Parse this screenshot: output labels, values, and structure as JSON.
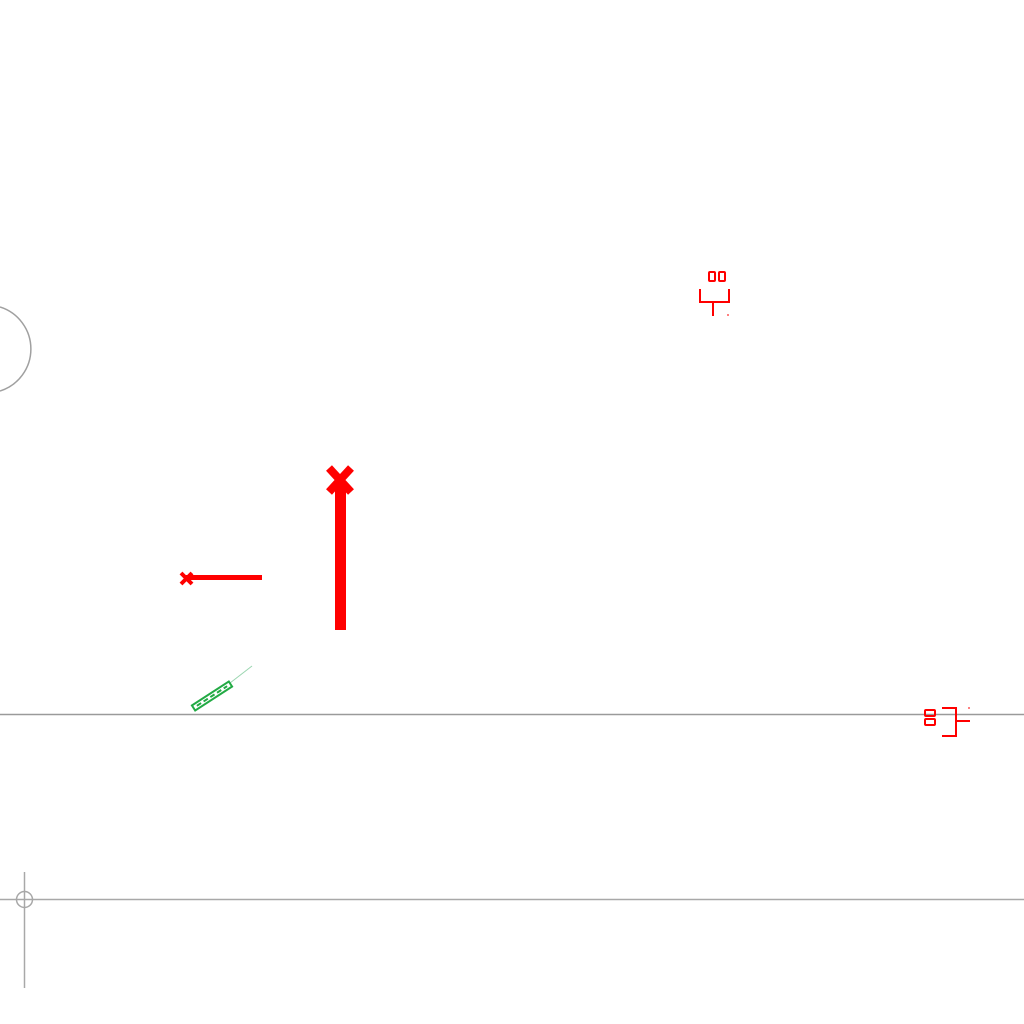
{
  "canvas": {
    "background": "#ffffff"
  },
  "colors": {
    "marker": "#ff0000",
    "highlight": "#22aa44",
    "guide": "#9a9a9a",
    "faint": "#bcbcbc"
  },
  "symbols": [
    {
      "id": "pin-symbol-top",
      "icon": "pin-symbol-icon",
      "color": "#ff0000"
    },
    {
      "id": "pin-symbol-right",
      "icon": "pin-symbol-icon",
      "color": "#ff0000"
    },
    {
      "id": "tall-marker",
      "icon": "x-marker-icon",
      "color": "#ff0000"
    },
    {
      "id": "short-marker",
      "icon": "x-marker-icon",
      "color": "#ff0000"
    },
    {
      "id": "dimension-segment",
      "icon": "dashed-segment-icon",
      "color": "#22aa44"
    }
  ],
  "crosshair": {
    "icon": "crosshair-icon"
  }
}
